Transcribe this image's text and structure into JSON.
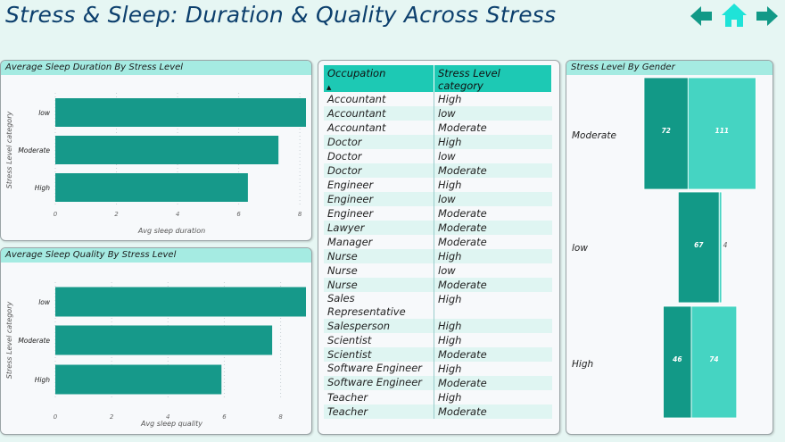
{
  "header": {
    "title": "Stress & Sleep: Duration & Quality Across Stress"
  },
  "nav": {
    "back_icon": "arrow-left-icon",
    "home_icon": "home-icon",
    "forward_icon": "arrow-right-icon"
  },
  "colors": {
    "bar": "#16998a",
    "female": "#129987",
    "male": "#45d4c2",
    "header": "#a5ebe2",
    "high": "#e0124c",
    "moderate": "#f0940f"
  },
  "duration_chart": {
    "panel_title": "Average Sleep Duration By Stress Level",
    "chart_data": {
      "type": "bar",
      "orientation": "horizontal",
      "categories": [
        "low",
        "Moderate",
        "High"
      ],
      "values": [
        8.2,
        7.3,
        6.3
      ],
      "xlabel": "Avg sleep duration",
      "ylabel": "Stress Level category",
      "xlim": [
        0,
        8.2
      ],
      "xticks": [
        "0",
        "2",
        "4",
        "6",
        "8"
      ],
      "grid": true
    }
  },
  "quality_chart": {
    "panel_title": "Average Sleep Quality By Stress Level",
    "chart_data": {
      "type": "bar",
      "orientation": "horizontal",
      "categories": [
        "low",
        "Moderate",
        "High"
      ],
      "values": [
        8.9,
        7.7,
        5.9
      ],
      "xlabel": "Avg sleep quality",
      "ylabel": "Stress Level category",
      "xlim": [
        0,
        8.9
      ],
      "xticks": [
        "0",
        "2",
        "4",
        "6",
        "8"
      ],
      "grid": true
    }
  },
  "table": {
    "columns": [
      "Occupation",
      "Stress Level category"
    ],
    "rows": [
      [
        "Accountant",
        "High"
      ],
      [
        "Accountant",
        "low"
      ],
      [
        "Accountant",
        "Moderate"
      ],
      [
        "Doctor",
        "High"
      ],
      [
        "Doctor",
        "low"
      ],
      [
        "Doctor",
        "Moderate"
      ],
      [
        "Engineer",
        "High"
      ],
      [
        "Engineer",
        "low"
      ],
      [
        "Engineer",
        "Moderate"
      ],
      [
        "Lawyer",
        "Moderate"
      ],
      [
        "Manager",
        "Moderate"
      ],
      [
        "Nurse",
        "High"
      ],
      [
        "Nurse",
        "low"
      ],
      [
        "Nurse",
        "Moderate"
      ],
      [
        "Sales Representative",
        "High"
      ],
      [
        "Salesperson",
        "High"
      ],
      [
        "Scientist",
        "High"
      ],
      [
        "Scientist",
        "Moderate"
      ],
      [
        "Software Engineer",
        "High"
      ],
      [
        "Software Engineer",
        "Moderate"
      ],
      [
        "Teacher",
        "High"
      ],
      [
        "Teacher",
        "Moderate"
      ]
    ]
  },
  "gender_chart": {
    "panel_title": "Stress Level By Gender",
    "chart_data": {
      "type": "bar",
      "stacked": true,
      "orientation": "horizontal",
      "categories": [
        "Moderate",
        "low",
        "High"
      ],
      "series": [
        {
          "values": [
            72,
            67,
            46
          ]
        },
        {
          "values": [
            111,
            4,
            74
          ]
        }
      ]
    }
  }
}
